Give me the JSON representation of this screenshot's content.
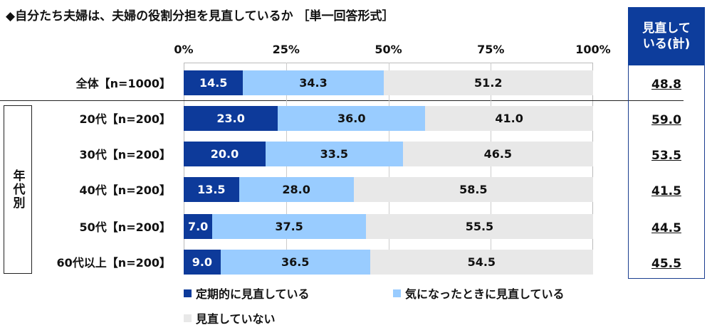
{
  "chart_data": {
    "type": "bar",
    "orientation": "horizontal-stacked-100",
    "title": "◆自分たち夫婦は、夫婦の役割分担を見直しているか ［単一回答形式］",
    "xlim": [
      0,
      100
    ],
    "x_ticks": [
      "0%",
      "25%",
      "50%",
      "75%",
      "100%"
    ],
    "categories": [
      "全体【n=1000】",
      "20代【n=200】",
      "30代【n=200】",
      "40代【n=200】",
      "50代【n=200】",
      "60代以上【n=200】"
    ],
    "series": [
      {
        "name": "定期的に見直している",
        "color": "#0d3a9a",
        "text_color": "#ffffff",
        "values": [
          14.5,
          23.0,
          20.0,
          13.5,
          7.0,
          9.0
        ]
      },
      {
        "name": "気になったときに見直している",
        "color": "#99ccff",
        "text_color": "#111111",
        "values": [
          34.3,
          36.0,
          33.5,
          28.0,
          37.5,
          36.5
        ]
      },
      {
        "name": "見直していない",
        "color": "#e8e8e8",
        "text_color": "#111111",
        "values": [
          51.2,
          41.0,
          46.5,
          58.5,
          55.5,
          54.5
        ]
      }
    ],
    "summary": {
      "header": "見直している(計)",
      "values": [
        "48.8",
        "59.0",
        "53.5",
        "41.5",
        "44.5",
        "45.5"
      ]
    },
    "group_label": "年代別",
    "legend_position": "bottom",
    "grid": true
  }
}
